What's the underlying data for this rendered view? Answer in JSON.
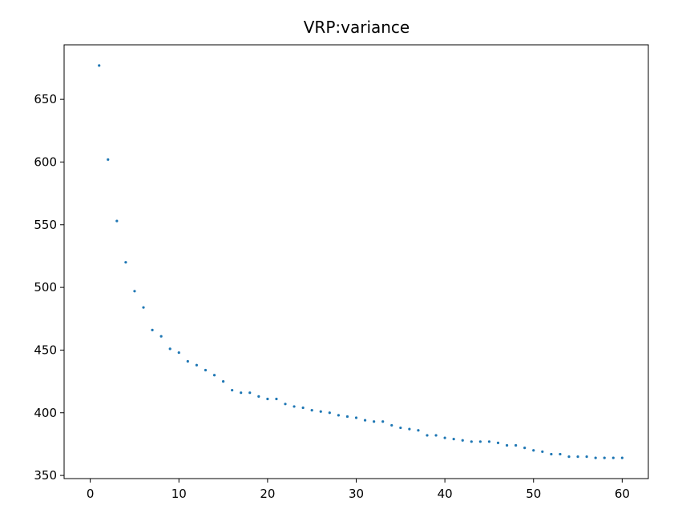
{
  "chart_data": {
    "type": "scatter",
    "title": "VRP:variance",
    "xlabel": "",
    "ylabel": "",
    "xlim": [
      -2.95,
      62.95
    ],
    "ylim": [
      347.5,
      693.5
    ],
    "xticks": [
      0,
      10,
      20,
      30,
      40,
      50,
      60
    ],
    "yticks": [
      350,
      400,
      450,
      500,
      550,
      600,
      650
    ],
    "grid": false,
    "legend": "none",
    "color": "#1f77b4",
    "series": [
      {
        "x": [
          1,
          2,
          3,
          4,
          5,
          6,
          7,
          8,
          9,
          10,
          11,
          12,
          13,
          14,
          15,
          16,
          17,
          18,
          19,
          20,
          21,
          22,
          23,
          24,
          25,
          26,
          27,
          28,
          29,
          30,
          31,
          32,
          33,
          34,
          35,
          36,
          37,
          38,
          39,
          40,
          41,
          42,
          43,
          44,
          45,
          46,
          47,
          48,
          49,
          50,
          51,
          52,
          53,
          54,
          55,
          56,
          57,
          58,
          59,
          60
        ],
        "y": [
          677,
          602,
          553,
          520,
          497,
          484,
          466,
          461,
          451,
          448,
          441,
          438,
          434,
          430,
          425,
          418,
          416,
          416,
          413,
          411,
          411,
          407,
          405,
          404,
          402,
          401,
          400,
          398,
          397,
          396,
          394,
          393,
          393,
          390,
          388,
          387,
          386,
          382,
          382,
          380,
          379,
          378,
          377,
          377,
          377,
          376,
          374,
          374,
          372,
          370,
          369,
          367,
          367,
          365,
          365,
          365,
          364,
          364,
          364,
          364
        ]
      }
    ]
  }
}
